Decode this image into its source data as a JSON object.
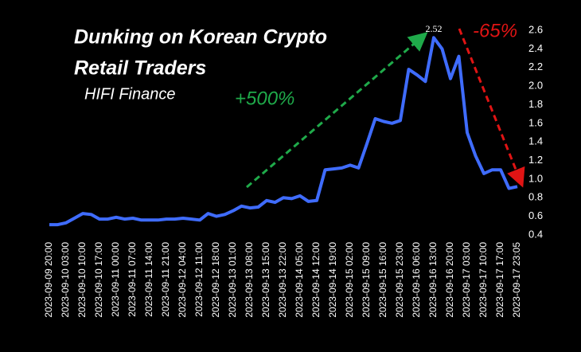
{
  "chart_data": {
    "type": "line",
    "title": [
      "Dunking on Korean Crypto",
      "Retail Traders"
    ],
    "subtitle": "HIFI Finance",
    "annotations": [
      {
        "text": "+500%",
        "color": "#1faa4a"
      },
      {
        "text": "-65%",
        "color": "#e01414"
      }
    ],
    "categories": [
      "2023-09-09 20:00",
      null,
      "2023-09-10 03:00",
      null,
      "2023-09-10 10:00",
      null,
      "2023-09-10 17:00",
      null,
      "2023-09-11 00:00",
      null,
      "2023-09-11 07:00",
      null,
      "2023-09-11 14:00",
      null,
      "2023-09-11 21:00",
      null,
      "2023-09-12 04:00",
      null,
      "2023-09-12 11:00",
      null,
      "2023-09-12 18:00",
      null,
      "2023-09-13 01:00",
      null,
      "2023-09-13 08:00",
      null,
      "2023-09-13 15:00",
      null,
      "2023-09-13 22:00",
      null,
      "2023-09-14 05:00",
      null,
      "2023-09-14 12:00",
      null,
      "2023-09-14 19:00",
      null,
      "2023-09-15 02:00",
      null,
      "2023-09-15 09:00",
      null,
      "2023-09-15 16:00",
      null,
      "2023-09-15 23:00",
      null,
      "2023-09-16 06:00",
      null,
      "2023-09-16 13:00",
      null,
      "2023-09-16 20:00",
      null,
      "2023-09-17 03:00",
      null,
      "2023-09-17 10:00",
      null,
      "2023-09-17 17:00",
      null,
      "2023-09-17 23:05"
    ],
    "values": [
      0.51,
      0.51,
      0.53,
      0.58,
      0.63,
      0.62,
      0.57,
      0.57,
      0.59,
      0.57,
      0.58,
      0.56,
      0.56,
      0.56,
      0.57,
      0.57,
      0.58,
      0.57,
      0.56,
      0.63,
      0.6,
      0.62,
      0.66,
      0.71,
      0.69,
      0.7,
      0.77,
      0.75,
      0.8,
      0.79,
      0.82,
      0.76,
      0.77,
      1.1,
      1.11,
      1.12,
      1.15,
      1.12,
      1.38,
      1.65,
      1.62,
      1.6,
      1.63,
      2.18,
      2.12,
      2.05,
      2.52,
      2.4,
      2.08,
      2.32,
      1.5,
      1.25,
      1.06,
      1.1,
      1.1,
      0.9,
      0.92
    ],
    "value_labels": [
      null,
      null,
      null,
      null,
      null,
      null,
      null,
      null,
      null,
      null,
      null,
      null,
      null,
      null,
      null,
      null,
      null,
      null,
      null,
      null,
      null,
      null,
      null,
      null,
      null,
      null,
      null,
      null,
      null,
      null,
      null,
      null,
      null,
      null,
      null,
      null,
      null,
      null,
      null,
      null,
      null,
      null,
      null,
      null,
      null,
      null,
      "2.52",
      null,
      null,
      null,
      null,
      null,
      null,
      null,
      null,
      null,
      null
    ],
    "color": "#3f6cff",
    "ylim": [
      0.4,
      2.6
    ],
    "yticks": [
      0.4,
      0.6,
      0.8,
      {
        "value": 1,
        "label": "1.0"
      },
      1.2,
      1.4,
      1.6,
      1.8,
      {
        "value": 2,
        "label": "2.0"
      },
      2.2,
      2.4,
      2.6
    ],
    "y_axis_side": "right"
  }
}
